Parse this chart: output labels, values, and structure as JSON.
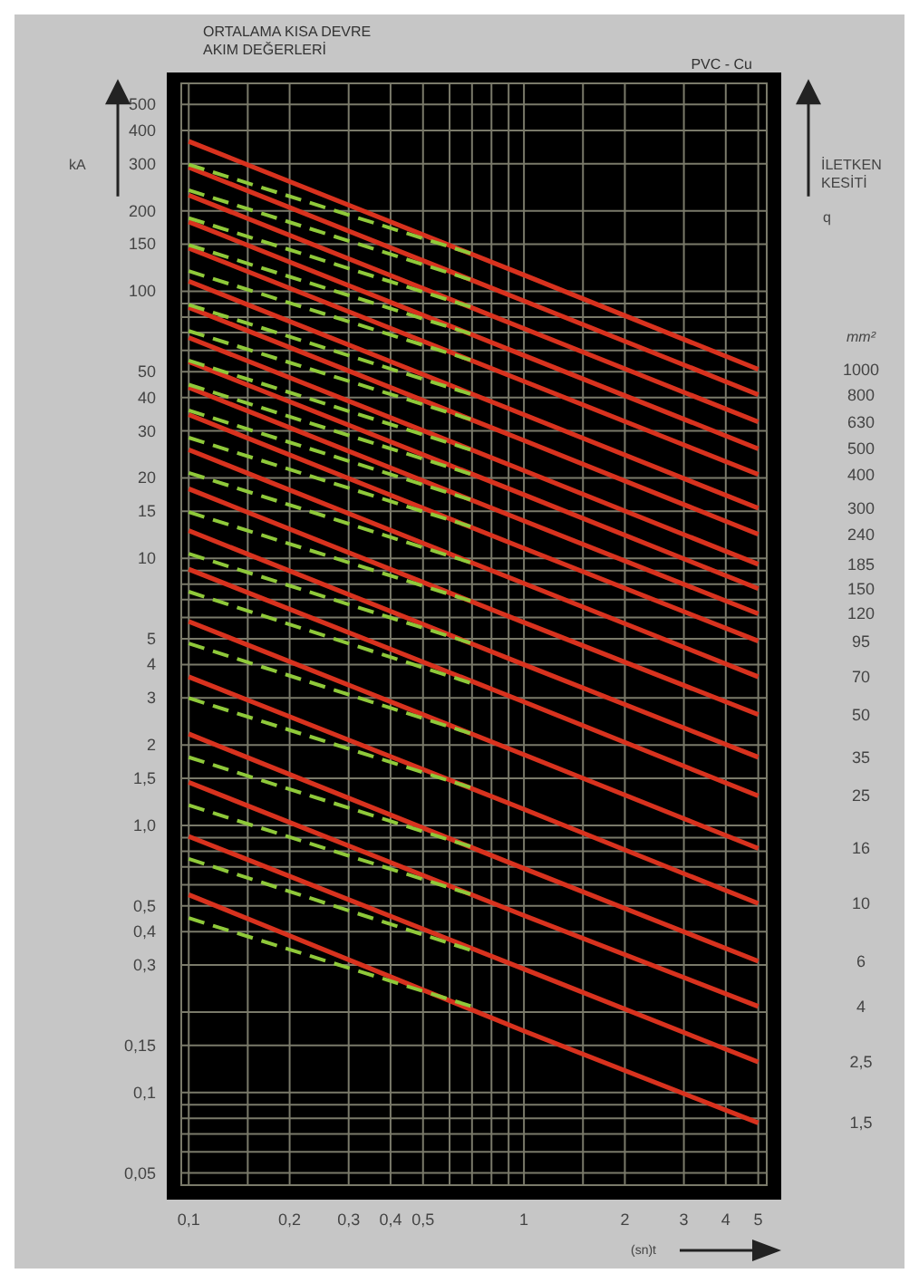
{
  "chart_data": {
    "type": "line",
    "title": "ORTALAMA KISA DEVRE\nAKIM DEĞERLERİ",
    "subtitle": "PVC - Cu",
    "xlabel": "(sn)t",
    "ylabel": "kA",
    "annotations": [
      "İLETKEN\nKESİTİ",
      "q",
      "mm²"
    ],
    "log": "xy",
    "grid": true,
    "xlim": [
      0.095,
      5.3
    ],
    "ylim": [
      0.045,
      600
    ],
    "xticks": [
      {
        "value": 0.1,
        "label": "0,1"
      },
      {
        "value": 0.15,
        "label": null
      },
      {
        "value": 0.2,
        "label": "0,2"
      },
      {
        "value": 0.3,
        "label": "0,3"
      },
      {
        "value": 0.4,
        "label": "0,4"
      },
      {
        "value": 0.5,
        "label": "0,5"
      },
      {
        "value": 0.6,
        "label": null
      },
      {
        "value": 0.7,
        "label": null
      },
      {
        "value": 0.8,
        "label": null
      },
      {
        "value": 0.9,
        "label": null
      },
      1,
      {
        "value": 1.5,
        "label": null
      },
      2,
      3,
      4,
      5
    ],
    "yticks": [
      {
        "value": 0.05,
        "label": "0,05"
      },
      {
        "value": 0.06,
        "label": null
      },
      {
        "value": 0.07,
        "label": null
      },
      {
        "value": 0.08,
        "label": null
      },
      {
        "value": 0.09,
        "label": null
      },
      {
        "value": 0.1,
        "label": "0,1"
      },
      {
        "value": 0.15,
        "label": "0,15"
      },
      {
        "value": 0.2,
        "label": null
      },
      {
        "value": 0.3,
        "label": "0,3"
      },
      {
        "value": 0.4,
        "label": "0,4"
      },
      {
        "value": 0.5,
        "label": "0,5"
      },
      {
        "value": 0.6,
        "label": null
      },
      {
        "value": 0.7,
        "label": null
      },
      {
        "value": 0.8,
        "label": null
      },
      {
        "value": 0.9,
        "label": null
      },
      {
        "value": 1,
        "label": "1,0"
      },
      {
        "value": 1.5,
        "label": "1,5"
      },
      2,
      3,
      4,
      5,
      {
        "value": 6,
        "label": null
      },
      {
        "value": 7,
        "label": null
      },
      {
        "value": 8,
        "label": null
      },
      {
        "value": 9,
        "label": null
      },
      10,
      15,
      20,
      30,
      40,
      50,
      {
        "value": 60,
        "label": null
      },
      {
        "value": 70,
        "label": null
      },
      {
        "value": 80,
        "label": null
      },
      {
        "value": 90,
        "label": null
      },
      100,
      150,
      200,
      300,
      400,
      500
    ],
    "series": [
      {
        "name": "1,5",
        "color": "#d8321e",
        "x": [
          0.1,
          1,
          5
        ],
        "values": [
          0.55,
          0.17,
          0.077
        ]
      },
      {
        "color": "#8fc93a",
        "line_style": "dashed",
        "x": [
          0.1,
          0.7
        ],
        "values": [
          0.45,
          0.21
        ]
      },
      {
        "name": "2,5",
        "color": "#d8321e",
        "x": [
          0.1,
          1,
          5
        ],
        "values": [
          0.91,
          0.29,
          0.13
        ]
      },
      {
        "color": "#8fc93a",
        "line_style": "dashed",
        "x": [
          0.1,
          0.7
        ],
        "values": [
          0.75,
          0.34
        ]
      },
      {
        "name": "4",
        "color": "#d8321e",
        "x": [
          0.1,
          1,
          5
        ],
        "values": [
          1.45,
          0.46,
          0.21
        ]
      },
      {
        "color": "#8fc93a",
        "line_style": "dashed",
        "x": [
          0.1,
          0.7
        ],
        "values": [
          1.19,
          0.55
        ]
      },
      {
        "name": "6",
        "color": "#d8321e",
        "x": [
          0.1,
          1,
          5
        ],
        "values": [
          2.2,
          0.69,
          0.31
        ]
      },
      {
        "color": "#8fc93a",
        "line_style": "dashed",
        "x": [
          0.1,
          0.7
        ],
        "values": [
          1.8,
          0.83
        ]
      },
      {
        "name": "10",
        "color": "#d8321e",
        "x": [
          0.1,
          1,
          5
        ],
        "values": [
          3.6,
          1.15,
          0.51
        ]
      },
      {
        "color": "#8fc93a",
        "line_style": "dashed",
        "x": [
          0.1,
          0.7
        ],
        "values": [
          3.0,
          1.38
        ]
      },
      {
        "name": "16",
        "color": "#d8321e",
        "x": [
          0.1,
          1,
          5
        ],
        "values": [
          5.8,
          1.84,
          0.82
        ]
      },
      {
        "color": "#8fc93a",
        "line_style": "dashed",
        "x": [
          0.1,
          0.7
        ],
        "values": [
          4.8,
          2.2
        ]
      },
      {
        "name": "25",
        "color": "#d8321e",
        "x": [
          0.1,
          1,
          5
        ],
        "values": [
          9.1,
          2.9,
          1.29
        ]
      },
      {
        "color": "#8fc93a",
        "line_style": "dashed",
        "x": [
          0.1,
          0.7
        ],
        "values": [
          7.5,
          3.4
        ]
      },
      {
        "name": "35",
        "color": "#d8321e",
        "x": [
          0.1,
          1,
          5
        ],
        "values": [
          12.7,
          4.0,
          1.8
        ]
      },
      {
        "color": "#8fc93a",
        "line_style": "dashed",
        "x": [
          0.1,
          0.7
        ],
        "values": [
          10.4,
          4.8
        ]
      },
      {
        "name": "50",
        "color": "#d8321e",
        "x": [
          0.1,
          1,
          5
        ],
        "values": [
          18.2,
          5.75,
          2.6
        ]
      },
      {
        "color": "#8fc93a",
        "line_style": "dashed",
        "x": [
          0.1,
          0.7
        ],
        "values": [
          14.9,
          6.9
        ]
      },
      {
        "name": "70",
        "color": "#d8321e",
        "x": [
          0.1,
          1,
          5
        ],
        "values": [
          25.5,
          8.05,
          3.6
        ]
      },
      {
        "color": "#8fc93a",
        "line_style": "dashed",
        "x": [
          0.1,
          0.7
        ],
        "values": [
          20.9,
          9.6
        ]
      },
      {
        "name": "95",
        "color": "#d8321e",
        "x": [
          0.1,
          1,
          5
        ],
        "values": [
          34.5,
          10.9,
          4.9
        ]
      },
      {
        "color": "#8fc93a",
        "line_style": "dashed",
        "x": [
          0.1,
          0.7
        ],
        "values": [
          28.3,
          13.1
        ]
      },
      {
        "name": "120",
        "color": "#d8321e",
        "x": [
          0.1,
          1,
          5
        ],
        "values": [
          43.6,
          13.8,
          6.2
        ]
      },
      {
        "color": "#8fc93a",
        "line_style": "dashed",
        "x": [
          0.1,
          0.7
        ],
        "values": [
          35.8,
          16.5
        ]
      },
      {
        "name": "150",
        "color": "#d8321e",
        "x": [
          0.1,
          1,
          5
        ],
        "values": [
          54.5,
          17.3,
          7.7
        ]
      },
      {
        "color": "#8fc93a",
        "line_style": "dashed",
        "x": [
          0.1,
          0.7
        ],
        "values": [
          44.7,
          20.6
        ]
      },
      {
        "name": "185",
        "color": "#d8321e",
        "x": [
          0.1,
          1,
          5
        ],
        "values": [
          67,
          21.3,
          9.5
        ]
      },
      {
        "color": "#8fc93a",
        "line_style": "dashed",
        "x": [
          0.1,
          0.7
        ],
        "values": [
          55,
          25.4
        ]
      },
      {
        "name": "240",
        "color": "#d8321e",
        "x": [
          0.1,
          1,
          5
        ],
        "values": [
          87,
          27.6,
          12.3
        ]
      },
      {
        "color": "#8fc93a",
        "line_style": "dashed",
        "x": [
          0.1,
          0.7
        ],
        "values": [
          71,
          33
        ]
      },
      {
        "name": "300",
        "color": "#d8321e",
        "x": [
          0.1,
          1,
          5
        ],
        "values": [
          109,
          34.5,
          15.4
        ]
      },
      {
        "color": "#8fc93a",
        "line_style": "dashed",
        "x": [
          0.1,
          0.7
        ],
        "values": [
          89,
          41
        ]
      },
      {
        "name": "400",
        "color": "#d8321e",
        "x": [
          0.1,
          1,
          5
        ],
        "values": [
          145,
          46,
          20.6
        ]
      },
      {
        "color": "#8fc93a",
        "line_style": "dashed",
        "x": [
          0.1,
          0.7
        ],
        "values": [
          119,
          55
        ]
      },
      {
        "name": "500",
        "color": "#d8321e",
        "x": [
          0.1,
          1,
          5
        ],
        "values": [
          182,
          57.5,
          25.7
        ]
      },
      {
        "color": "#8fc93a",
        "line_style": "dashed",
        "x": [
          0.1,
          0.7
        ],
        "values": [
          149,
          69
        ]
      },
      {
        "name": "630",
        "color": "#d8321e",
        "x": [
          0.1,
          1,
          5
        ],
        "values": [
          229,
          72.5,
          32.4
        ]
      },
      {
        "color": "#8fc93a",
        "line_style": "dashed",
        "x": [
          0.1,
          0.7
        ],
        "values": [
          188,
          87
        ]
      },
      {
        "name": "800",
        "color": "#d8321e",
        "x": [
          0.1,
          1,
          5
        ],
        "values": [
          291,
          92,
          41
        ]
      },
      {
        "color": "#8fc93a",
        "line_style": "dashed",
        "x": [
          0.1,
          0.7
        ],
        "values": [
          239,
          110
        ]
      },
      {
        "name": "1000",
        "color": "#d8321e",
        "x": [
          0.1,
          1,
          5
        ],
        "values": [
          364,
          115,
          51
        ]
      },
      {
        "color": "#8fc93a",
        "line_style": "dashed",
        "x": [
          0.1,
          0.7
        ],
        "values": [
          298,
          138
        ]
      }
    ]
  }
}
